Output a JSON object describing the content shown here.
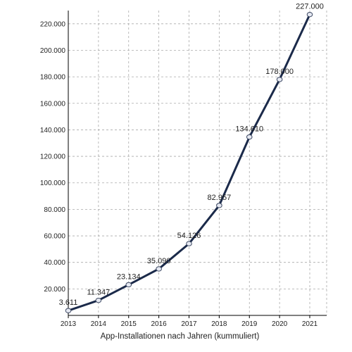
{
  "chart_data": {
    "type": "line",
    "title": "",
    "xlabel": "App-Installationen nach Jahren (kummuliert)",
    "ylabel": "",
    "x": [
      "2013",
      "2014",
      "2015",
      "2016",
      "2017",
      "2018",
      "2019",
      "2020",
      "2021"
    ],
    "series": [
      {
        "values": [
          3611,
          11347,
          23134,
          35090,
          54126,
          82957,
          134610,
          178000,
          227000
        ],
        "labels": [
          "3.611",
          "11.347",
          "23.134",
          "35.090",
          "54.126",
          "82.957",
          "134.610",
          "178.000",
          "227.000"
        ],
        "color": "#1b2a4a"
      }
    ],
    "ylim": [
      0,
      230000
    ],
    "yticks": [
      20000,
      40000,
      60000,
      80000,
      100000,
      120000,
      140000,
      160000,
      180000,
      200000,
      220000
    ],
    "ytick_labels": [
      "20.000",
      "40.000",
      "60.000",
      "80.000",
      "100.000",
      "120.000",
      "140.000",
      "160.000",
      "180.000",
      "200.000",
      "220.000"
    ],
    "grid": true,
    "legend": "none",
    "colors": {
      "line": "#1b2a4a",
      "marker_fill": "#e6e9f2",
      "grid": "#aaaaaa",
      "axis": "#000000"
    }
  }
}
